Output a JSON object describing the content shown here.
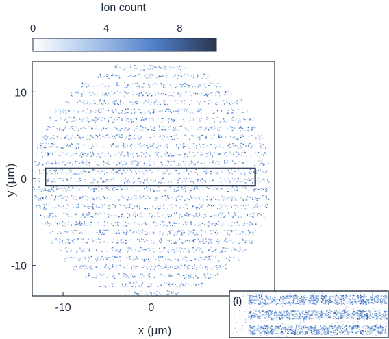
{
  "chart_data": {
    "type": "heatmap",
    "title": "",
    "colorbar": {
      "label": "Ion count",
      "ticks": [
        0,
        4,
        8
      ],
      "range": [
        0,
        10
      ],
      "colors": [
        "#ffffff",
        "#a9c4ea",
        "#4f7fc8",
        "#2a3550"
      ]
    },
    "xlabel": "x (μm)",
    "ylabel": "y (μm)",
    "xlim": [
      -13.5,
      14
    ],
    "ylim": [
      -13.5,
      13.5
    ],
    "x_ticks": [
      -10,
      0
    ],
    "y_ticks": [
      10,
      0,
      -10
    ],
    "distribution": {
      "shape": "disk",
      "center": [
        0,
        0
      ],
      "radius_um": 13.5,
      "pattern": "horizontal stripes",
      "stripe_period_um": 1.0,
      "peak_count": 8
    },
    "highlight_box": {
      "x_range": [
        -12,
        11.8
      ],
      "y_range": [
        -0.8,
        1.2
      ],
      "color": "#2a3550"
    },
    "inset": {
      "label": "(i)",
      "description_rows": 3
    }
  }
}
